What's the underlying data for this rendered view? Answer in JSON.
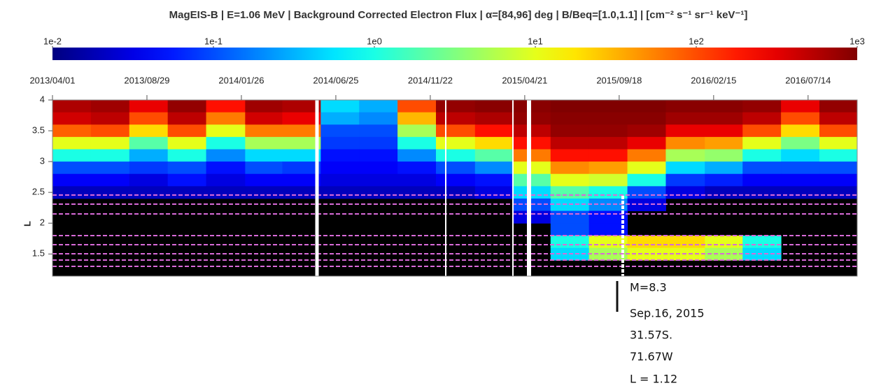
{
  "chart_data": {
    "type": "heatmap",
    "title": "MagEIS-B | E=1.06 MeV | Background Corrected Electron Flux | α=[84,96] deg | B/Beq=[1.0,1.1] | [cm⁻² s⁻¹ sr⁻¹ keV⁻¹]",
    "y_label": "L",
    "colorscale": "jet",
    "color_log": true,
    "clim": [
      0.01,
      1000
    ],
    "cticks": [
      {
        "value": 0.01,
        "label": "1e-2"
      },
      {
        "value": 0.1,
        "label": "1e-1"
      },
      {
        "value": 1,
        "label": "1e0"
      },
      {
        "value": 10,
        "label": "1e1"
      },
      {
        "value": 100,
        "label": "1e2"
      },
      {
        "value": 1000,
        "label": "1e3"
      }
    ],
    "xlim": [
      "2013/04/01",
      "2016/09/30"
    ],
    "xticks": [
      "2013/04/01",
      "2013/08/29",
      "2014/01/26",
      "2014/06/25",
      "2014/11/22",
      "2015/04/21",
      "2015/09/18",
      "2016/02/15",
      "2016/07/14"
    ],
    "ylim": [
      1.14,
      4
    ],
    "yticks": [
      1.5,
      2,
      2.5,
      3,
      3.5,
      4
    ],
    "x": [
      "2013/04/01",
      "2013/06/01",
      "2013/08/01",
      "2013/10/01",
      "2013/12/01",
      "2014/02/01",
      "2014/04/01",
      "2014/06/01",
      "2014/08/01",
      "2014/10/01",
      "2014/12/01",
      "2015/02/01",
      "2015/04/01",
      "2015/06/01",
      "2015/08/01",
      "2015/10/01",
      "2015/12/01",
      "2016/02/01",
      "2016/04/01",
      "2016/06/01",
      "2016/08/01"
    ],
    "y": [
      3.9,
      3.7,
      3.5,
      3.3,
      3.1,
      2.9,
      2.7,
      2.5,
      2.3,
      2.1,
      1.9,
      1.7,
      1.5
    ],
    "z": [
      [
        600,
        700,
        300,
        800,
        200,
        700,
        600,
        0.5,
        0.3,
        100,
        800,
        900,
        900,
        1000,
        1000,
        1000,
        900,
        900,
        800,
        300,
        800
      ],
      [
        400,
        500,
        100,
        500,
        60,
        400,
        300,
        0.3,
        0.2,
        30,
        500,
        600,
        800,
        900,
        900,
        900,
        700,
        700,
        500,
        100,
        500
      ],
      [
        80,
        100,
        20,
        100,
        10,
        60,
        60,
        0.1,
        0.1,
        5,
        100,
        200,
        500,
        800,
        800,
        700,
        300,
        300,
        100,
        20,
        100
      ],
      [
        10,
        10,
        2,
        10,
        1,
        5,
        5,
        0.08,
        0.08,
        1,
        10,
        20,
        200,
        500,
        500,
        300,
        50,
        40,
        10,
        3,
        10
      ],
      [
        1,
        1,
        0.3,
        1,
        0.2,
        0.5,
        0.5,
        0.05,
        0.05,
        0.2,
        1,
        2,
        60,
        200,
        200,
        60,
        5,
        4,
        1,
        0.5,
        1
      ],
      [
        0.1,
        0.1,
        0.08,
        0.1,
        0.05,
        0.1,
        0.08,
        0.04,
        0.04,
        0.05,
        0.1,
        0.2,
        10,
        50,
        40,
        10,
        0.5,
        0.3,
        0.1,
        0.1,
        0.1
      ],
      [
        0.04,
        0.04,
        0.03,
        0.05,
        0.03,
        0.04,
        0.04,
        0.03,
        0.03,
        0.03,
        0.04,
        0.05,
        2,
        10,
        8,
        1,
        0.08,
        0.06,
        0.04,
        0.04,
        0.04
      ],
      [
        0.02,
        0.02,
        0.02,
        0.02,
        0.02,
        0.02,
        0.02,
        0.02,
        0.02,
        0.02,
        0.02,
        0.03,
        0.5,
        2,
        1,
        0.1,
        0.03,
        0.02,
        0.02,
        0.02,
        0.02
      ],
      [
        null,
        null,
        null,
        null,
        null,
        null,
        null,
        null,
        null,
        null,
        null,
        null,
        0.1,
        0.5,
        0.2,
        0.03,
        null,
        null,
        null,
        null,
        null
      ],
      [
        null,
        null,
        null,
        null,
        null,
        null,
        null,
        null,
        null,
        null,
        null,
        null,
        0.03,
        0.1,
        0.05,
        null,
        null,
        null,
        null,
        null,
        null
      ],
      [
        null,
        null,
        null,
        null,
        null,
        null,
        null,
        null,
        null,
        null,
        null,
        null,
        null,
        0.1,
        0.05,
        null,
        null,
        null,
        null,
        null,
        null
      ],
      [
        null,
        null,
        null,
        null,
        null,
        null,
        null,
        null,
        null,
        null,
        null,
        null,
        null,
        1,
        10,
        20,
        20,
        10,
        1,
        null,
        null
      ],
      [
        null,
        null,
        null,
        null,
        null,
        null,
        null,
        null,
        null,
        null,
        null,
        null,
        null,
        0.5,
        5,
        10,
        10,
        5,
        0.5,
        null,
        null
      ]
    ],
    "annotations": [
      "M=8.3",
      "Sep.16, 2015",
      "31.57S.",
      "71.67W",
      "L = 1.12"
    ]
  }
}
